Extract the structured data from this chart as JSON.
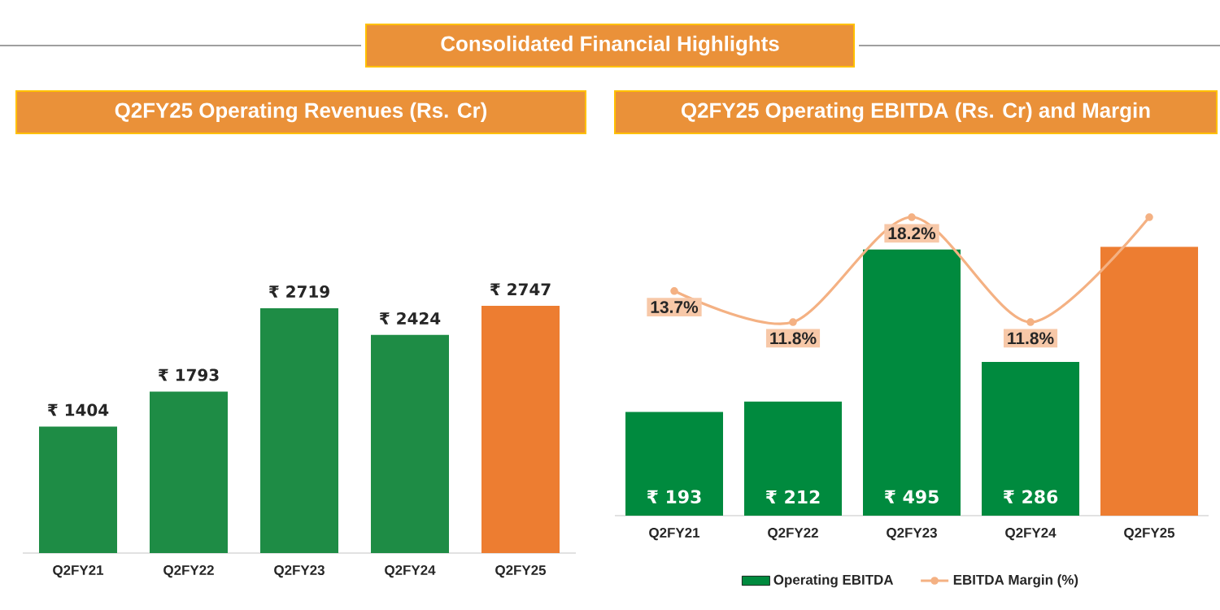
{
  "chart_data": [
    {
      "type": "bar",
      "title": "Q2FY25 Operating Revenues (Rs. Cr)",
      "annotations": [
        "Consolidated Financial Highlights"
      ],
      "categories": [
        "Q2FY21",
        "Q2FY22",
        "Q2FY23",
        "Q2FY24",
        "Q2FY25"
      ],
      "values": [
        1404,
        1793,
        2719,
        2424,
        2747
      ],
      "colors": [
        "#1e8c45",
        "#1e8c45",
        "#1e8c45",
        "#1e8c45",
        "#ed7d31"
      ],
      "value_labels": [
        "₹ 1404",
        "₹ 1793",
        "₹ 2719",
        "₹ 2424",
        "₹ 2747"
      ]
    },
    {
      "type": "bar",
      "title": "Q2FY25 Operating EBITDA (Rs. Cr) and Margin",
      "categories": [
        "Q2FY21",
        "Q2FY22",
        "Q2FY23",
        "Q2FY24",
        "Q2FY25"
      ],
      "series": [
        {
          "name": "Operating EBITDA",
          "type": "bar",
          "colors": [
            "#008a3e",
            "#008a3e",
            "#008a3e",
            "#008a3e",
            "#ed7d31"
          ],
          "values": [
            193,
            212,
            495,
            286,
            500
          ],
          "value_labels": [
            "₹ 193",
            "₹ 212",
            "₹ 495",
            "₹ 286",
            null
          ]
        },
        {
          "name": "EBITDA Margin (%)",
          "type": "line",
          "axis": "y2",
          "color": "#f4b183",
          "values": [
            13.7,
            11.8,
            18.2,
            11.8,
            18.2
          ],
          "value_labels": [
            "13.7%",
            "11.8%",
            "18.2%",
            "11.8%",
            null
          ]
        }
      ],
      "legend": "bottom",
      "marker": "circle"
    }
  ]
}
